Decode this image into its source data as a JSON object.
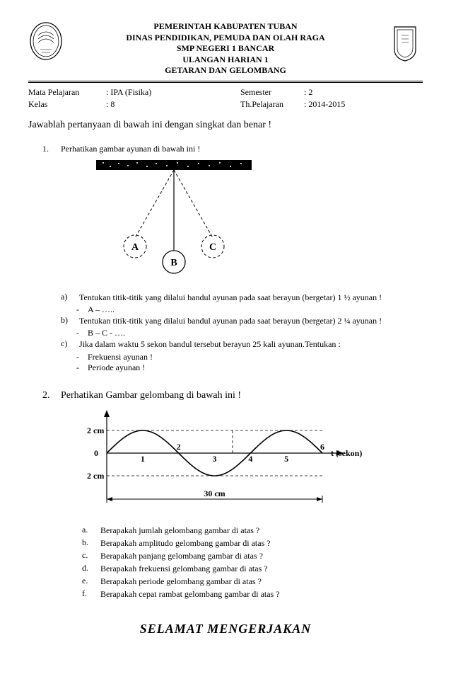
{
  "header": {
    "line1": "PEMERINTAH KABUPATEN TUBAN",
    "line2": "DINAS PENDIDIKAN, PEMUDA DAN OLAH RAGA",
    "line3": "SMP NEGERI 1 BANCAR",
    "line4": "ULANGAN HARIAN 1",
    "line5": "GETARAN DAN GELOMBANG"
  },
  "meta": {
    "r1c1": "Mata Pelajaran",
    "r1c2": ": IPA (Fisika)",
    "r1c3": "Semester",
    "r1c4": ": 2",
    "r2c1": "Kelas",
    "r2c2": ": 8",
    "r2c3": "Th.Pelajaran",
    "r2c4": ": 2014-2015"
  },
  "instruksi": "Jawablah pertanyaan di bawah ini dengan singkat dan benar !",
  "q1": {
    "num": "1.",
    "text": "Perhatikan gambar ayunan di bawah ini !",
    "sub_a_n": "a)",
    "sub_a_t": "Tentukan titik-titik yang dilalui bandul ayunan pada saat berayun (bergetar) 1 ½ ayunan !",
    "sub_a_dash": "A – …..",
    "sub_b_n": "b)",
    "sub_b_t": "Tentukan titik-titik yang dilalui bandul ayunan pada saat berayun  (bergetar) 2 ¼ ayunan !",
    "sub_b_dash": "B – C - ….",
    "sub_c_n": "c)",
    "sub_c_t": "Jika dalam waktu 5 sekon bandul tersebut berayun 25 kali ayunan.Tentukan :",
    "sub_c_d1": "Frekuensi ayunan !",
    "sub_c_d2": "Periode ayunan !"
  },
  "diagram1": {
    "labelA": "A",
    "labelB": "B",
    "labelC": "C",
    "bar_fill": "#000000",
    "stroke": "#000000",
    "dash": "4,3"
  },
  "q2": {
    "num": "2.",
    "text": "Perhatikan Gambar gelombang di bawah ini !",
    "sub_a_n": "a.",
    "sub_a_t": "Berapakah jumlah gelombang gambar di atas ?",
    "sub_b_n": "b.",
    "sub_b_t": "Berapakah amplitudo gelombang gambar di atas ?",
    "sub_c_n": "c.",
    "sub_c_t": "Berapakah panjang gelombang gambar di atas ?",
    "sub_d_n": "d.",
    "sub_d_t": "Berapakah frekuensi gelombang gambar di atas ?",
    "sub_e_n": "e.",
    "sub_e_t": "Berapakah periode gelombang gambar di atas ?",
    "sub_f_n": "f.",
    "sub_f_t": "Berapakah cepat rambat gelombang gambar di atas ?"
  },
  "wave": {
    "y_top": "2 cm",
    "y_zero": "0",
    "y_bot": "2 cm",
    "x_label": "t (sekon)",
    "x_ticks": [
      "1",
      "2",
      "3",
      "4",
      "5",
      "6"
    ],
    "bottom_len": "30 cm",
    "stroke": "#000000",
    "dash": "4,3",
    "wave_width_pt": 1.6,
    "axis_width_pt": 1.2
  },
  "footer": "SELAMAT MENGERJAKAN"
}
